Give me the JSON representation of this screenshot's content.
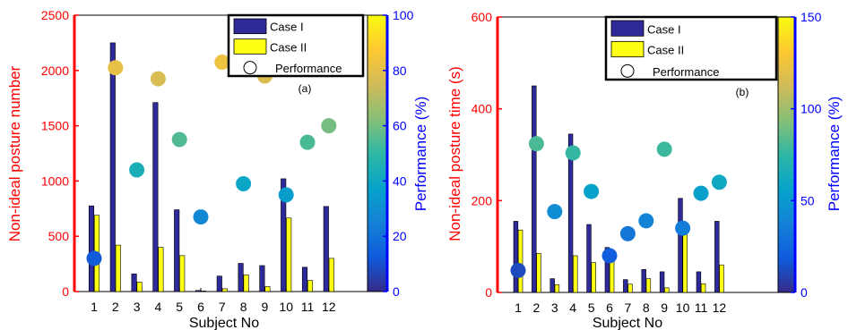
{
  "chart_data": [
    {
      "type": "bar",
      "subtitle": "(a)",
      "xlabel": "Subject No",
      "ylabel": "Non-ideal posture number",
      "ylabel_right": "Performance (%)",
      "categories": [
        "1",
        "2",
        "3",
        "4",
        "5",
        "6",
        "7",
        "8",
        "9",
        "10",
        "11",
        "12"
      ],
      "ylim": [
        0,
        2500
      ],
      "yticks": [
        "0",
        "500",
        "1000",
        "1500",
        "2000",
        "2500"
      ],
      "y2lim": [
        0,
        100
      ],
      "y2ticks": [
        "0",
        "20",
        "40",
        "60",
        "80",
        "100"
      ],
      "series": [
        {
          "name": "Case I",
          "color": "#2f2a9a",
          "values": [
            775,
            2250,
            160,
            1710,
            740,
            10,
            140,
            255,
            235,
            1020,
            220,
            770
          ]
        },
        {
          "name": "Case II",
          "color": "#ffff14",
          "values": [
            690,
            420,
            85,
            400,
            325,
            5,
            25,
            150,
            45,
            665,
            100,
            300
          ]
        }
      ],
      "performance": {
        "name": "Performance",
        "values": [
          12,
          81,
          44,
          77,
          55,
          27,
          83,
          39,
          78,
          35,
          54,
          60
        ]
      },
      "legend_loc": "top-right",
      "colorbar": true
    },
    {
      "type": "bar",
      "subtitle": "(b)",
      "xlabel": "Subject No",
      "ylabel": "Non-ideal posture time (s)",
      "ylabel_right": "Performance (%)",
      "categories": [
        "1",
        "2",
        "3",
        "4",
        "5",
        "6",
        "7",
        "8",
        "9",
        "10",
        "11",
        "12"
      ],
      "ylim": [
        0,
        600
      ],
      "yticks": [
        "0",
        "200",
        "400",
        "600"
      ],
      "y2lim": [
        0,
        150
      ],
      "y2ticks": [
        "0",
        "50",
        "100",
        "150"
      ],
      "series": [
        {
          "name": "Case I",
          "color": "#2f2a9a",
          "values": [
            155,
            450,
            30,
            345,
            148,
            98,
            28,
            50,
            45,
            205,
            45,
            155
          ]
        },
        {
          "name": "Case II",
          "color": "#ffff14",
          "values": [
            136,
            85,
            17,
            80,
            65,
            75,
            18,
            30,
            10,
            135,
            19,
            60
          ]
        }
      ],
      "performance": {
        "name": "Performance",
        "values": [
          12,
          81,
          44,
          76,
          55,
          20,
          32,
          39,
          78,
          35,
          54,
          60
        ]
      },
      "legend_loc": "top-right",
      "colorbar": true
    }
  ]
}
